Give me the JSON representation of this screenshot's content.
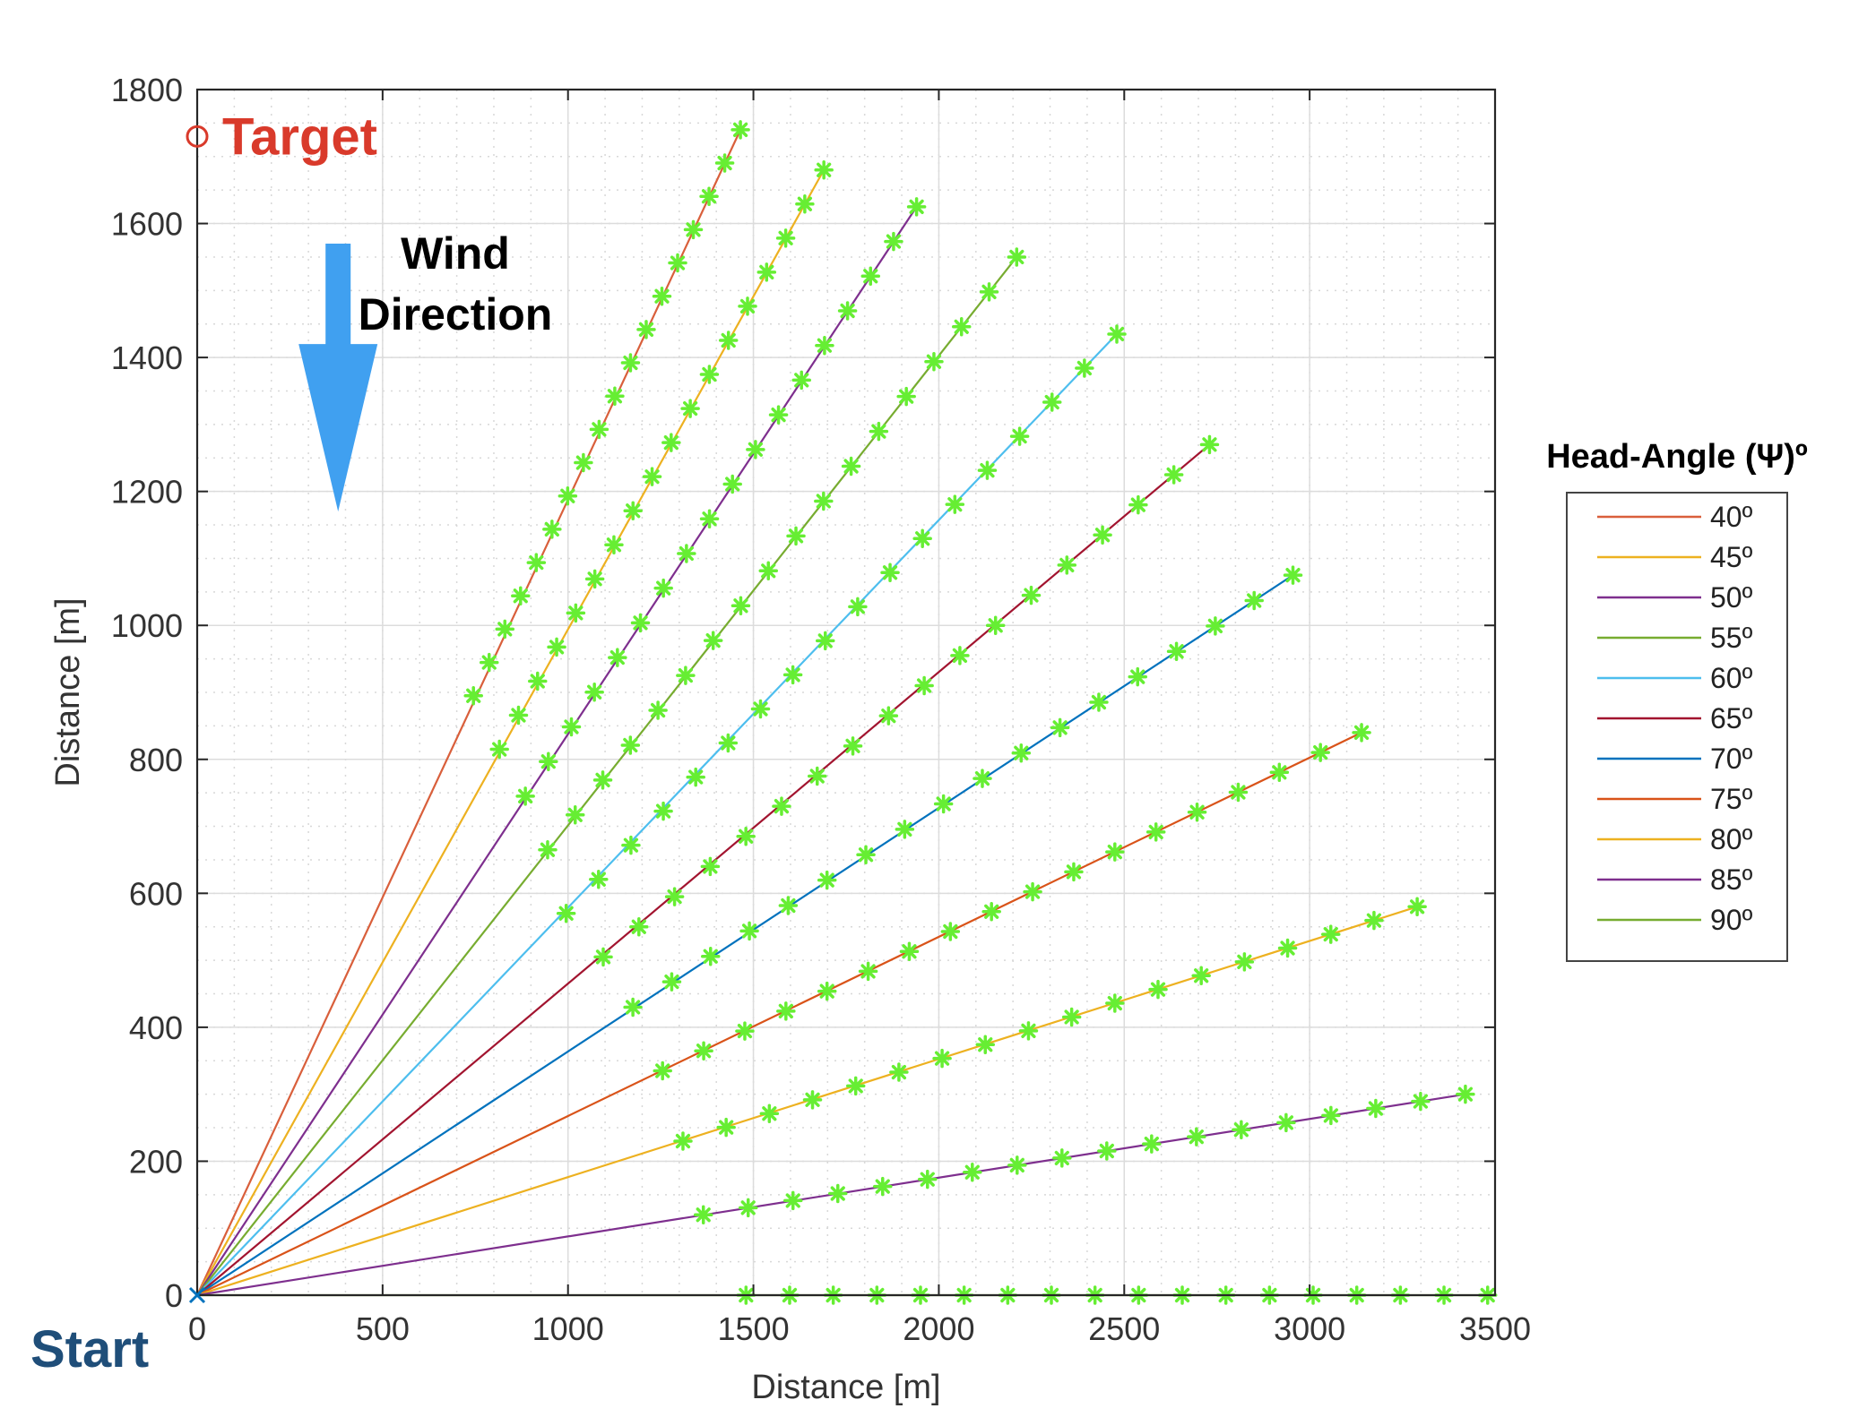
{
  "chart_data": {
    "type": "line",
    "title": "",
    "xlabel": "Distance [m]",
    "ylabel": "Distance [m]",
    "xlim": [
      0,
      3500
    ],
    "ylim": [
      0,
      1800
    ],
    "xticks": [
      0,
      500,
      1000,
      1500,
      2000,
      2500,
      3000,
      3500
    ],
    "yticks": [
      0,
      200,
      400,
      600,
      800,
      1000,
      1200,
      1400,
      1600,
      1800
    ],
    "grid": true,
    "minor_grid": true,
    "legend": {
      "title": "Head-Angle (Ψ)º",
      "placement": "outside-right"
    },
    "series": [
      {
        "name": "40º",
        "color": "#D95F3B",
        "start": [
          0,
          0
        ],
        "end": [
          1465,
          1740
        ],
        "markers_from": [
          745,
          895
        ],
        "marker_count": 18
      },
      {
        "name": "45º",
        "color": "#EDB120",
        "start": [
          0,
          0
        ],
        "end": [
          1690,
          1680
        ],
        "markers_from": [
          815,
          815
        ],
        "marker_count": 18
      },
      {
        "name": "50º",
        "color": "#7E2F8E",
        "start": [
          0,
          0
        ],
        "end": [
          1940,
          1625
        ],
        "markers_from": [
          885,
          745
        ],
        "marker_count": 18
      },
      {
        "name": "55º",
        "color": "#77AC30",
        "start": [
          0,
          0
        ],
        "end": [
          2210,
          1550
        ],
        "markers_from": [
          945,
          665
        ],
        "marker_count": 18
      },
      {
        "name": "60º",
        "color": "#4DBEEE",
        "start": [
          0,
          0
        ],
        "end": [
          2480,
          1435
        ],
        "markers_from": [
          995,
          570
        ],
        "marker_count": 18
      },
      {
        "name": "65º",
        "color": "#A2142F",
        "start": [
          0,
          0
        ],
        "end": [
          2730,
          1270
        ],
        "markers_from": [
          1095,
          505
        ],
        "marker_count": 18
      },
      {
        "name": "70º",
        "color": "#0072BD",
        "start": [
          0,
          0
        ],
        "end": [
          2955,
          1075
        ],
        "markers_from": [
          1175,
          430
        ],
        "marker_count": 18
      },
      {
        "name": "75º",
        "color": "#D95319",
        "start": [
          0,
          0
        ],
        "end": [
          3140,
          840
        ],
        "markers_from": [
          1255,
          335
        ],
        "marker_count": 18
      },
      {
        "name": "80º",
        "color": "#EDB120",
        "start": [
          0,
          0
        ],
        "end": [
          3290,
          580
        ],
        "markers_from": [
          1310,
          230
        ],
        "marker_count": 18
      },
      {
        "name": "85º",
        "color": "#7E2F8E",
        "start": [
          0,
          0
        ],
        "end": [
          3420,
          300
        ],
        "markers_from": [
          1365,
          120
        ],
        "marker_count": 18
      },
      {
        "name": "90º",
        "color": "#77AC30",
        "start": [
          0,
          0
        ],
        "end": [
          3480,
          0
        ],
        "markers_from": [
          1480,
          0
        ],
        "marker_count": 18
      }
    ],
    "marker": {
      "symbol": "asterisk",
      "color": "#66EE33"
    },
    "annotations": {
      "target": {
        "label": "Target",
        "x": 0,
        "y": 1730,
        "color": "#D93A2B"
      },
      "start": {
        "label": "Start",
        "x": 0,
        "y": 0,
        "color": "#1F4E79"
      },
      "wind": {
        "line1": "Wind",
        "line2": "Direction",
        "arrow_color": "#40A0F0",
        "from_y": 1570,
        "to_y": 1170
      }
    }
  }
}
